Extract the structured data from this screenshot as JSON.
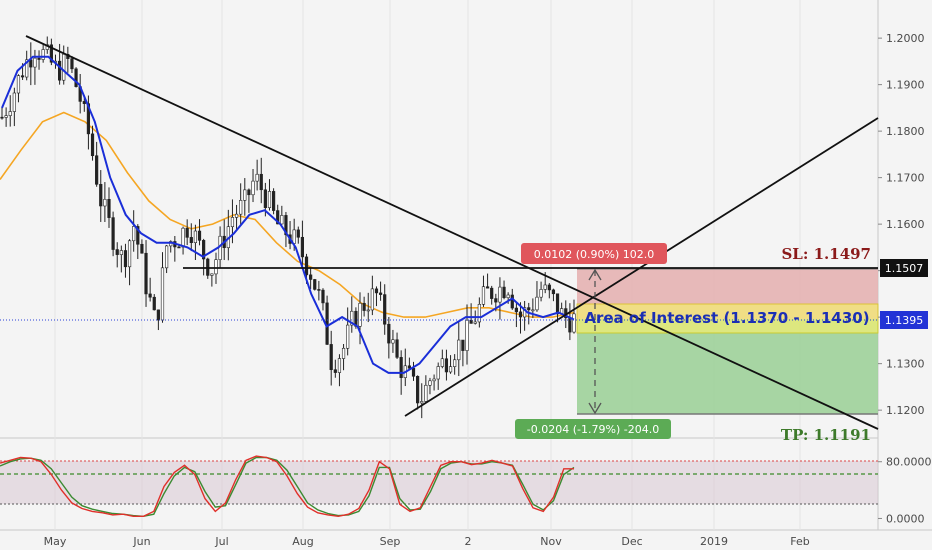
{
  "chart_data": {
    "type": "candlestick",
    "main_panel": {
      "price_ylim": [
        1.1153,
        1.2082
      ],
      "y_ticks": [
        "1.2000",
        "1.1900",
        "1.1800",
        "1.1700",
        "1.1600",
        "1.1500",
        "1.1400",
        "1.1300",
        "1.1200"
      ],
      "x_labels": [
        "May",
        "Jun",
        "Jul",
        "Aug",
        "Sep",
        "2",
        "Nov",
        "Dec",
        "2019",
        "Feb"
      ],
      "price_path": [
        1.183,
        1.188,
        1.194,
        1.198,
        1.196,
        1.193,
        1.195,
        1.188,
        1.178,
        1.165,
        1.158,
        1.152,
        1.16,
        1.148,
        1.138,
        1.156,
        1.157,
        1.16,
        1.155,
        1.15,
        1.156,
        1.162,
        1.164,
        1.17,
        1.166,
        1.16,
        1.158,
        1.155,
        1.15,
        1.143,
        1.13,
        1.133,
        1.14,
        1.143,
        1.145,
        1.138,
        1.13,
        1.127,
        1.122,
        1.127,
        1.13,
        1.133,
        1.135,
        1.14,
        1.145,
        1.146,
        1.147,
        1.14,
        1.142,
        1.146,
        1.144,
        1.14,
        1.1395
      ],
      "blue_ma": [
        1.185,
        1.193,
        1.196,
        1.196,
        1.193,
        1.19,
        1.182,
        1.17,
        1.162,
        1.158,
        1.156,
        1.156,
        1.155,
        1.153,
        1.155,
        1.158,
        1.162,
        1.163,
        1.16,
        1.155,
        1.145,
        1.138,
        1.14,
        1.138,
        1.13,
        1.128,
        1.128,
        1.13,
        1.134,
        1.138,
        1.14,
        1.14,
        1.142,
        1.144,
        1.141,
        1.14,
        1.141,
        1.1395
      ],
      "orange_ma": [
        1.1696,
        1.176,
        1.182,
        1.184,
        1.182,
        1.178,
        1.171,
        1.165,
        1.161,
        1.159,
        1.16,
        1.162,
        1.161,
        1.156,
        1.152,
        1.15,
        1.147,
        1.143,
        1.141,
        1.14,
        1.14,
        1.141,
        1.142,
        1.142,
        1.141,
        1.14,
        1.14,
        1.141
      ],
      "trendline_down": {
        "from": [
          1.2003,
          "May-start"
        ],
        "to": [
          1.1162,
          "beyond-Feb"
        ]
      },
      "trendline_up": {
        "from": [
          1.1182,
          "Sep-start"
        ],
        "to": [
          1.1823,
          "beyond-Feb"
        ]
      },
      "horizontal_lines": [
        1.1507,
        1.1395
      ],
      "stop_loss_zone": [
        1.1395,
        1.1497
      ],
      "take_profit_zone": [
        1.1191,
        1.1395
      ],
      "area_of_interest": [
        1.137,
        1.143
      ],
      "current_price_label": "1.1395",
      "resistance_label": "1.1507",
      "sl_label": "SL: 1.1497",
      "tp_label": "TP: 1.1191",
      "aoi_label": "Area of Interest (1.1370 - 1.1430)",
      "risk_box_label": "0.0102 (0.90%) 102.0",
      "reward_box_label": "-0.0204 (-1.79%) -204.0"
    },
    "oscillator_panel": {
      "y_ticks": [
        "80.0000",
        "0.0000"
      ],
      "ylim": [
        -5,
        105
      ],
      "levels": [
        80,
        20,
        60
      ],
      "red_line": [
        78,
        82,
        86,
        85,
        80,
        62,
        40,
        22,
        14,
        10,
        8,
        5,
        6,
        3,
        3,
        10,
        45,
        65,
        75,
        62,
        28,
        10,
        22,
        55,
        82,
        88,
        86,
        80,
        60,
        35,
        16,
        8,
        5,
        3,
        6,
        14,
        40,
        80,
        70,
        20,
        10,
        15,
        45,
        75,
        80,
        80,
        76,
        78,
        82,
        78,
        74,
        42,
        15,
        10,
        30,
        70,
        70
      ],
      "green_line": [
        74,
        80,
        84,
        85,
        82,
        70,
        50,
        30,
        18,
        13,
        10,
        7,
        6,
        4,
        3,
        6,
        35,
        60,
        72,
        66,
        38,
        16,
        18,
        48,
        78,
        86,
        86,
        82,
        68,
        45,
        22,
        12,
        7,
        4,
        5,
        10,
        32,
        72,
        72,
        28,
        12,
        13,
        38,
        70,
        78,
        80,
        77,
        77,
        80,
        78,
        75,
        48,
        20,
        12,
        25,
        62,
        72
      ]
    }
  }
}
